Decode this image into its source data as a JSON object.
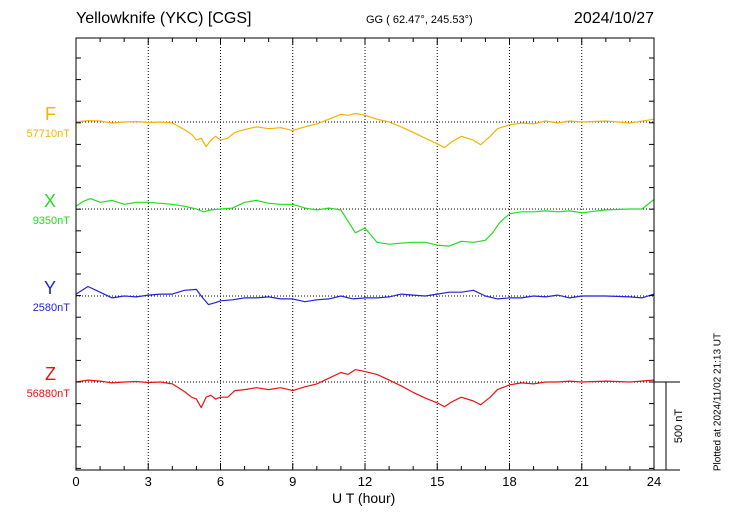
{
  "header": {
    "station": "Yellowknife (YKC)  [CGS]",
    "coords": "GG ( 62.47°, 245.53°)",
    "date": "2024/10/27"
  },
  "footer": {
    "plotted": "Plotted at 2024/11/02 21:13 UT"
  },
  "chart_data": {
    "type": "line",
    "xlabel": "U T (hour)",
    "xlim": [
      0,
      24
    ],
    "xticks": [
      0,
      3,
      6,
      9,
      12,
      15,
      18,
      21,
      24
    ],
    "grid": true,
    "scale_bar": {
      "label": "500 nT",
      "value_nT": 500
    },
    "series": [
      {
        "name": "F",
        "baseline_label": "57710nT",
        "baseline_nT": 57710,
        "color": "#f5b400",
        "x": [
          0,
          0.5,
          1,
          1.5,
          2,
          2.5,
          3,
          3.5,
          4,
          4.5,
          4.8,
          5.0,
          5.2,
          5.4,
          5.6,
          5.8,
          6.0,
          6.3,
          6.6,
          7.0,
          7.5,
          8.0,
          8.5,
          9.0,
          9.5,
          10.0,
          10.5,
          11.0,
          11.3,
          11.6,
          12.0,
          12.5,
          13.0,
          13.5,
          14.0,
          14.5,
          15.0,
          15.3,
          15.6,
          16.0,
          16.5,
          16.8,
          17.2,
          17.5,
          18.0,
          18.5,
          19.0,
          19.5,
          20.0,
          20.5,
          21.0,
          22.0,
          23.0,
          24.0
        ],
        "values": [
          57710,
          57725,
          57720,
          57700,
          57710,
          57715,
          57705,
          57710,
          57700,
          57630,
          57580,
          57520,
          57540,
          57450,
          57520,
          57560,
          57520,
          57540,
          57600,
          57630,
          57660,
          57640,
          57650,
          57620,
          57660,
          57690,
          57740,
          57790,
          57780,
          57800,
          57780,
          57740,
          57710,
          57660,
          57600,
          57540,
          57480,
          57440,
          57500,
          57560,
          57520,
          57470,
          57560,
          57640,
          57680,
          57700,
          57690,
          57720,
          57700,
          57720,
          57710,
          57720,
          57700,
          57740
        ]
      },
      {
        "name": "X",
        "baseline_label": "9350nT",
        "baseline_nT": 9350,
        "color": "#22dd22",
        "x": [
          0,
          0.3,
          0.6,
          1,
          1.5,
          2,
          2.5,
          3,
          3.5,
          4,
          4.5,
          5.0,
          5.3,
          5.6,
          6.0,
          6.5,
          7.0,
          7.5,
          8.0,
          8.5,
          9.0,
          9.5,
          10.0,
          10.5,
          11.0,
          11.3,
          11.6,
          12.0,
          12.5,
          13.0,
          13.5,
          14.0,
          14.5,
          15.0,
          15.5,
          16.0,
          16.5,
          17.0,
          17.3,
          17.6,
          18.0,
          18.5,
          19.0,
          19.5,
          20.0,
          20.5,
          21.0,
          22.0,
          23.0,
          23.5,
          24.0
        ],
        "values": [
          9380,
          9430,
          9460,
          9420,
          9440,
          9400,
          9420,
          9420,
          9410,
          9400,
          9380,
          9350,
          9320,
          9340,
          9350,
          9360,
          9420,
          9440,
          9410,
          9400,
          9400,
          9360,
          9340,
          9360,
          9340,
          9220,
          9100,
          9150,
          9000,
          8980,
          8990,
          9000,
          9000,
          8970,
          8960,
          9010,
          9000,
          9020,
          9100,
          9210,
          9300,
          9320,
          9320,
          9330,
          9320,
          9330,
          9310,
          9340,
          9350,
          9350,
          9450
        ]
      },
      {
        "name": "Y",
        "baseline_label": "2580nT",
        "baseline_nT": 2580,
        "color": "#2222dd",
        "x": [
          0,
          0.5,
          1,
          1.5,
          2,
          2.5,
          3,
          3.5,
          4,
          4.5,
          5.0,
          5.2,
          5.5,
          5.8,
          6.0,
          6.5,
          7.0,
          7.5,
          8.0,
          8.5,
          9.0,
          9.5,
          10.0,
          10.5,
          11.0,
          11.5,
          12.0,
          12.5,
          13.0,
          13.5,
          14.0,
          14.5,
          15.0,
          15.5,
          16.0,
          16.5,
          17.0,
          17.5,
          18.0,
          18.5,
          19.0,
          19.5,
          20.0,
          20.5,
          21.0,
          22.0,
          23.0,
          23.5,
          24.0
        ],
        "values": [
          2600,
          2680,
          2620,
          2560,
          2580,
          2570,
          2590,
          2600,
          2600,
          2640,
          2650,
          2580,
          2490,
          2510,
          2530,
          2540,
          2560,
          2560,
          2570,
          2550,
          2550,
          2520,
          2540,
          2550,
          2580,
          2550,
          2560,
          2560,
          2570,
          2600,
          2590,
          2580,
          2600,
          2620,
          2620,
          2640,
          2580,
          2550,
          2560,
          2560,
          2580,
          2570,
          2590,
          2560,
          2580,
          2580,
          2570,
          2560,
          2600
        ]
      },
      {
        "name": "Z",
        "baseline_label": "56880nT",
        "baseline_nT": 56880,
        "color": "#ee1111",
        "x": [
          0,
          0.5,
          1,
          1.5,
          2,
          2.5,
          3,
          3.5,
          4,
          4.5,
          4.8,
          5.0,
          5.2,
          5.4,
          5.6,
          5.8,
          6.0,
          6.3,
          6.6,
          7.0,
          7.5,
          8.0,
          8.5,
          9.0,
          9.5,
          10.0,
          10.5,
          11.0,
          11.3,
          11.6,
          12.0,
          12.5,
          13.0,
          13.5,
          14.0,
          14.5,
          15.0,
          15.3,
          15.6,
          16.0,
          16.5,
          16.8,
          17.2,
          17.5,
          18.0,
          18.5,
          19.0,
          19.5,
          20.0,
          20.5,
          21.0,
          22.0,
          23.0,
          24.0
        ],
        "values": [
          56880,
          56900,
          56890,
          56870,
          56880,
          56885,
          56875,
          56880,
          56860,
          56780,
          56720,
          56700,
          56610,
          56720,
          56740,
          56700,
          56720,
          56720,
          56790,
          56800,
          56820,
          56800,
          56820,
          56790,
          56830,
          56860,
          56920,
          56980,
          56960,
          57010,
          56990,
          56960,
          56900,
          56840,
          56770,
          56710,
          56660,
          56620,
          56670,
          56720,
          56680,
          56640,
          56720,
          56800,
          56850,
          56870,
          56860,
          56880,
          56880,
          56890,
          56880,
          56890,
          56880,
          56900
        ]
      }
    ]
  }
}
